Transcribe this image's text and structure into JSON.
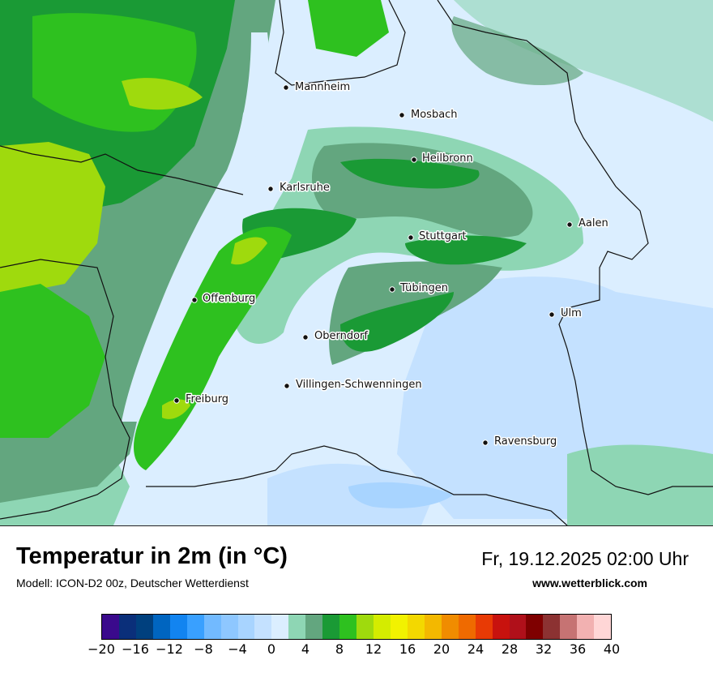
{
  "title": "Temperatur in 2m (in °C)",
  "model_line": "Modell: ICON-D2 00z, Deutscher Wetterdienst",
  "datetime": "Fr, 19.12.2025 02:00 Uhr",
  "website": "www.wetterblick.com",
  "cities": [
    {
      "name": "Mannheim"
    },
    {
      "name": "Mosbach"
    },
    {
      "name": "Heilbronn"
    },
    {
      "name": "Karlsruhe"
    },
    {
      "name": "Aalen"
    },
    {
      "name": "Stuttgart"
    },
    {
      "name": "Offenburg"
    },
    {
      "name": "Tübingen"
    },
    {
      "name": "Ulm"
    },
    {
      "name": "Oberndorf"
    },
    {
      "name": "Villingen-Schwenningen"
    },
    {
      "name": "Freiburg"
    },
    {
      "name": "Ravensburg"
    }
  ],
  "legend": {
    "unit": "°C",
    "min": -20,
    "max": 40,
    "step": 2,
    "tick_labels": [
      "−20",
      "−16",
      "−12",
      "−8",
      "−4",
      "0",
      "4",
      "8",
      "12",
      "16",
      "20",
      "24",
      "28",
      "32",
      "36",
      "40"
    ],
    "colors": [
      "#3a0a8c",
      "#0a2f7a",
      "#00407e",
      "#0065c0",
      "#1284f0",
      "#39a0ff",
      "#72baff",
      "#8ec7ff",
      "#a8d4ff",
      "#c4e1ff",
      "#dbeeff",
      "#8ed6b4",
      "#63a67f",
      "#1a9a35",
      "#2ec11f",
      "#9fda0d",
      "#d4ec00",
      "#f2f200",
      "#f3d800",
      "#f3b800",
      "#f08c00",
      "#ef6a00",
      "#e83a05",
      "#c8120e",
      "#b0101a",
      "#7f0000",
      "#8c3232",
      "#c67373",
      "#f2b1b1",
      "#ffd6d6"
    ]
  }
}
